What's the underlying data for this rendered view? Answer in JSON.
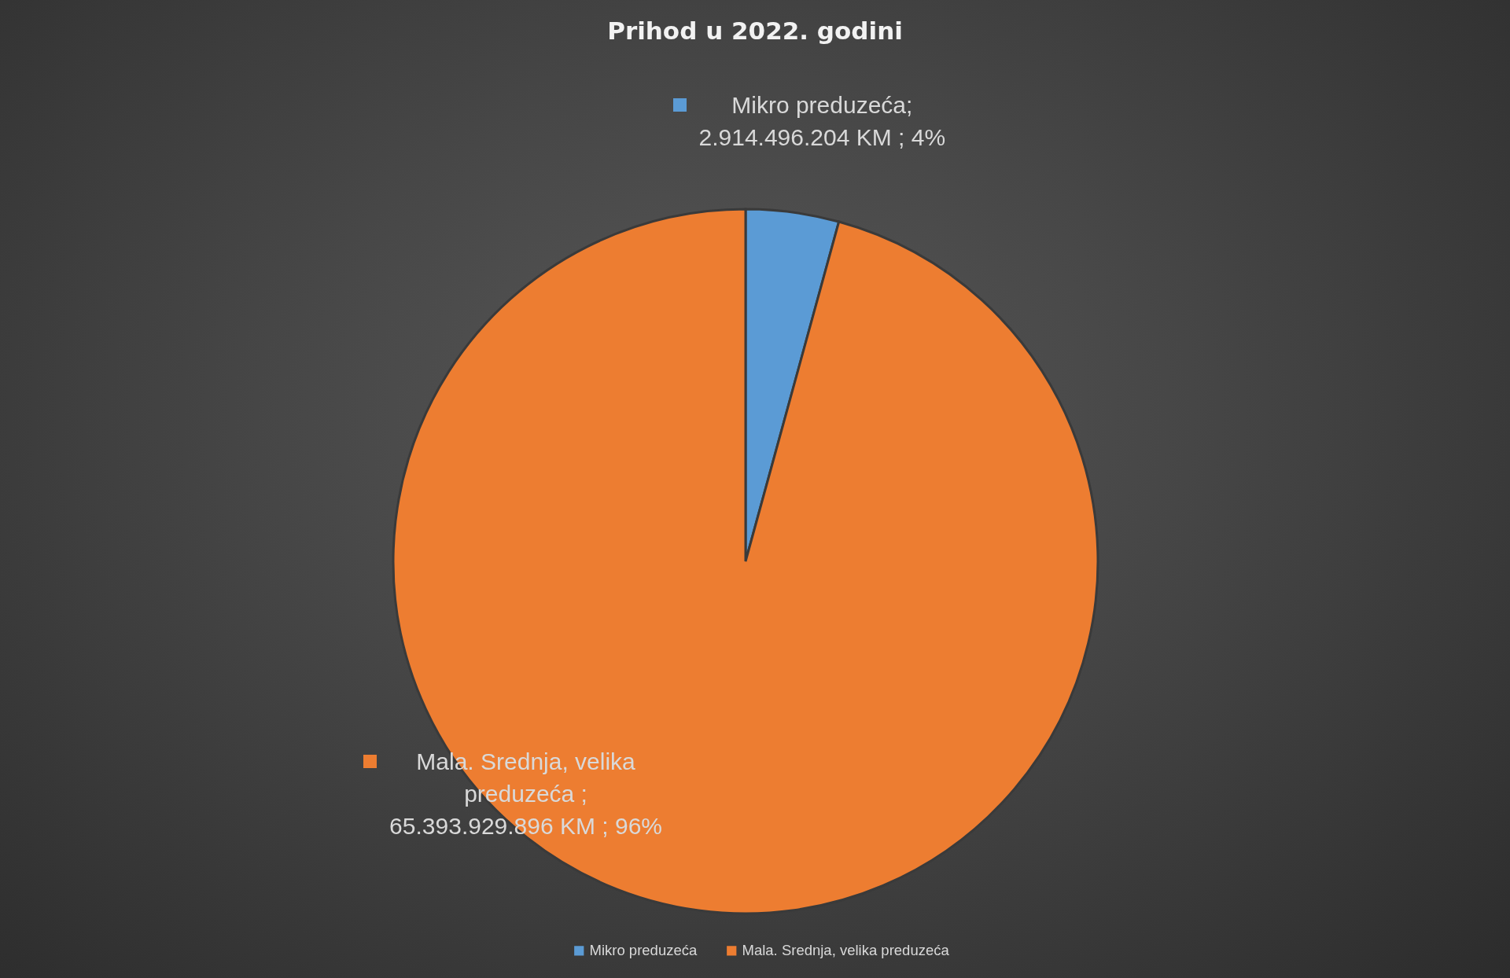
{
  "chart_data": {
    "type": "pie",
    "title": "Prihod u 2022. godini",
    "categories": [
      "Mikro preduzeća",
      "Mala. Srednja, velika preduzeća"
    ],
    "values": [
      2914496204,
      65393929896
    ],
    "colors": [
      "#5b9bd5",
      "#ed7d31"
    ],
    "value_labels": [
      "Mikro preduzeća; 2.914.496.204 KM ; 4%",
      "Mala. Srednja, velika preduzeća ; 65.393.929.896 KM ; 96%"
    ],
    "legend": "bottom"
  }
}
